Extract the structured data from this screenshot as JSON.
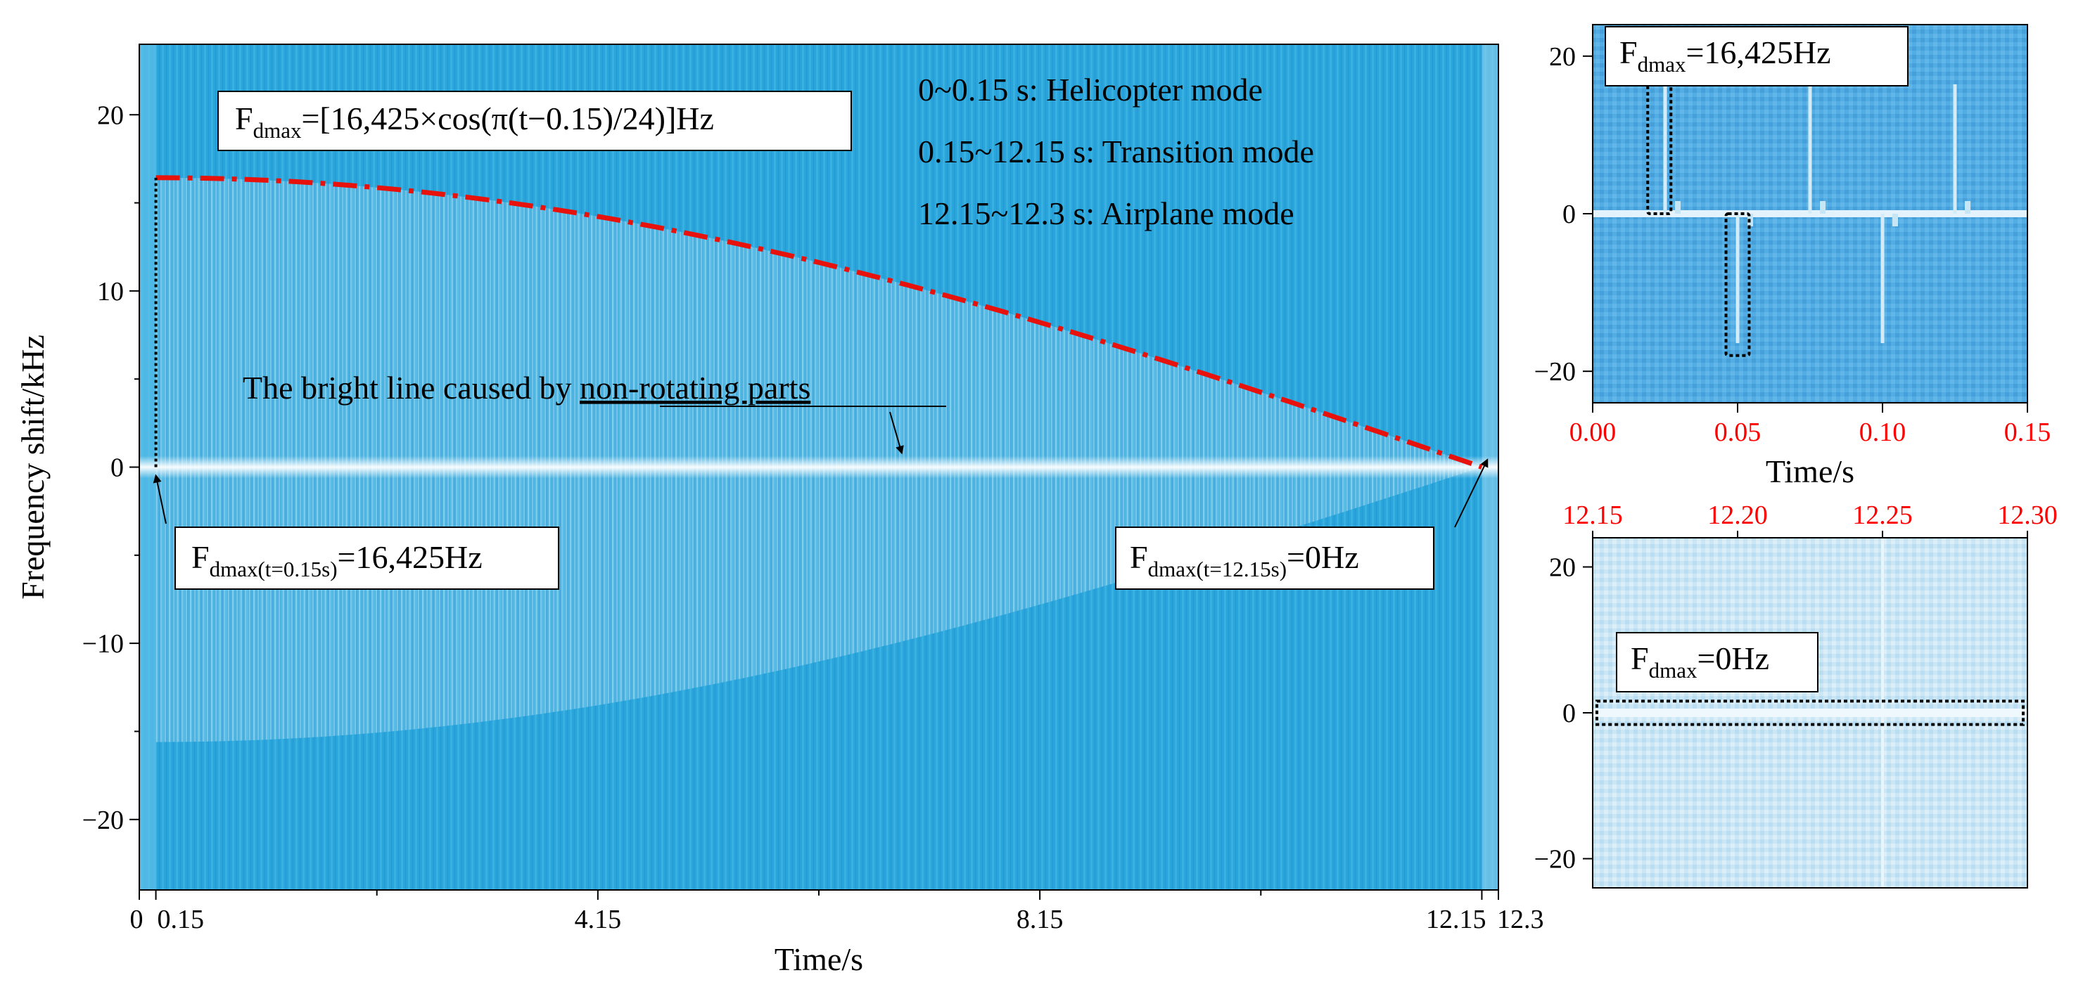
{
  "chart_data": [
    {
      "type": "heatmap",
      "name": "main-spectrogram",
      "title": "",
      "xlabel": "Time/s",
      "ylabel": "Frequency shift/kHz",
      "xlim": [
        0,
        12.3
      ],
      "ylim": [
        -24,
        24
      ],
      "x_ticks": [
        0,
        0.15,
        4.15,
        8.15,
        12.15,
        12.3
      ],
      "x_tick_labels": [
        "0",
        "0.15",
        "4.15",
        "8.15",
        "12.15",
        "12.3"
      ],
      "y_ticks": [
        20,
        10,
        0,
        -10,
        -20
      ],
      "y_tick_labels": [
        "20",
        "10",
        "0",
        "−10",
        "−20"
      ],
      "fdmax_curve": {
        "label_main": "F",
        "label_sub": "dmax",
        "label_rest": "=[16,425×cos(π(t−0.15)/24)]Hz",
        "t_start": 0.15,
        "t_end": 12.15,
        "fmax_khz": 16.425,
        "period_s": 24,
        "color": "#e8120c"
      },
      "start_line": {
        "t": 0.15,
        "f_from": 0,
        "f_to": 16.425
      },
      "mode_notes": [
        "0~0.15 s: Helicopter mode",
        "0.15~12.15 s: Transition mode",
        "12.15~12.3 s: Airplane mode"
      ],
      "bright_line_note": {
        "prefix": "The bright line caused by ",
        "underlined": "non-rotating parts",
        "arrow_to": {
          "t": 6.9,
          "f": 0.4
        }
      },
      "callout_start": {
        "main": "F",
        "sub": "dmax(t=0.15s)",
        "rest": "=16,425Hz",
        "arrow_to": {
          "t": 0.15,
          "f": 0
        }
      },
      "callout_end": {
        "main": "F",
        "sub": "dmax(t=12.15s)",
        "rest": "=0Hz",
        "arrow_to": {
          "t": 12.2,
          "f": 0.9
        }
      }
    },
    {
      "type": "heatmap",
      "name": "zoom-helicopter",
      "xlabel": "Time/s",
      "xlim": [
        0,
        0.15
      ],
      "ylim": [
        -24,
        24
      ],
      "x_ticks": [
        0,
        0.05,
        0.1,
        0.15
      ],
      "x_tick_labels": [
        "0.00",
        "0.05",
        "0.10",
        "0.15"
      ],
      "y_ticks": [
        20,
        0,
        -20
      ],
      "y_tick_labels": [
        "20",
        "0",
        "−20"
      ],
      "x_tick_color": "#ff0000",
      "label": {
        "main": "F",
        "sub": "dmax",
        "rest": "=16,425Hz"
      },
      "flashes": [
        {
          "t": 0.025,
          "dir": "up"
        },
        {
          "t": 0.05,
          "dir": "down"
        },
        {
          "t": 0.075,
          "dir": "up"
        },
        {
          "t": 0.1,
          "dir": "down"
        },
        {
          "t": 0.125,
          "dir": "up"
        }
      ],
      "flash_height_khz": 16.425,
      "dotted_boxes": [
        {
          "t0": 0.019,
          "t1": 0.027,
          "f0": 0,
          "f1": 17.5
        },
        {
          "t0": 0.046,
          "t1": 0.054,
          "f0": -18,
          "f1": 0
        }
      ]
    },
    {
      "type": "heatmap",
      "name": "zoom-airplane",
      "xlim": [
        12.15,
        12.3
      ],
      "ylim": [
        -24,
        24
      ],
      "x_ticks": [
        12.15,
        12.2,
        12.25,
        12.3
      ],
      "x_tick_labels": [
        "12.15",
        "12.20",
        "12.25",
        "12.30"
      ],
      "x_tick_position": "top",
      "y_ticks": [
        20,
        0,
        -20
      ],
      "y_tick_labels": [
        "20",
        "0",
        "−20"
      ],
      "x_tick_color": "#ff0000",
      "label": {
        "main": "F",
        "sub": "dmax",
        "rest": "=0Hz"
      },
      "dotted_box": {
        "f0": -1.6,
        "f1": 1.6
      }
    }
  ]
}
